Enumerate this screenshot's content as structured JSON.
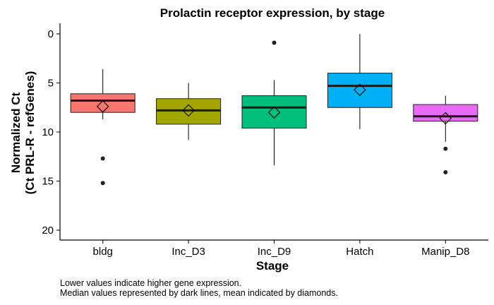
{
  "chart_data": {
    "type": "box",
    "title": "Prolactin receptor expression, by stage",
    "xlabel": "Stage",
    "ylabel_lines": [
      "Normalized Ct",
      "(Ct PRL-R - refGenes)"
    ],
    "y_reversed": true,
    "ylim": [
      0,
      20
    ],
    "yticks": [
      0,
      5,
      10,
      15,
      20
    ],
    "grid": false,
    "categories": [
      "bldg",
      "Inc_D3",
      "Inc_D9",
      "Hatch",
      "Manip_D8"
    ],
    "boxes": [
      {
        "category": "bldg",
        "color": "#F8766D",
        "whisker_low": 3.6,
        "q1": 6.1,
        "median": 6.8,
        "q3": 8.0,
        "whisker_high": 8.7,
        "mean": 7.4,
        "outliers": [
          12.7,
          15.2
        ]
      },
      {
        "category": "Inc_D3",
        "color": "#A3A500",
        "whisker_low": 5.0,
        "q1": 6.6,
        "median": 7.8,
        "q3": 9.2,
        "whisker_high": 10.8,
        "mean": 7.8,
        "outliers": []
      },
      {
        "category": "Inc_D9",
        "color": "#00BF7D",
        "whisker_low": 4.7,
        "q1": 6.3,
        "median": 7.5,
        "q3": 9.6,
        "whisker_high": 13.4,
        "mean": 8.0,
        "outliers": [
          0.9
        ]
      },
      {
        "category": "Hatch",
        "color": "#00B0F6",
        "whisker_low": 0.0,
        "q1": 4.0,
        "median": 5.3,
        "q3": 7.5,
        "whisker_high": 9.7,
        "mean": 5.7,
        "outliers": []
      },
      {
        "category": "Manip_D8",
        "color": "#E76BF3",
        "whisker_low": 6.3,
        "q1": 7.2,
        "median": 8.4,
        "q3": 8.9,
        "whisker_high": 11.0,
        "mean": 8.6,
        "outliers": [
          11.7,
          14.1
        ]
      }
    ]
  },
  "caption": {
    "line1": "Lower values indicate higher gene expression.",
    "line2": "Median values represented by dark lines, mean indicated by diamonds."
  }
}
